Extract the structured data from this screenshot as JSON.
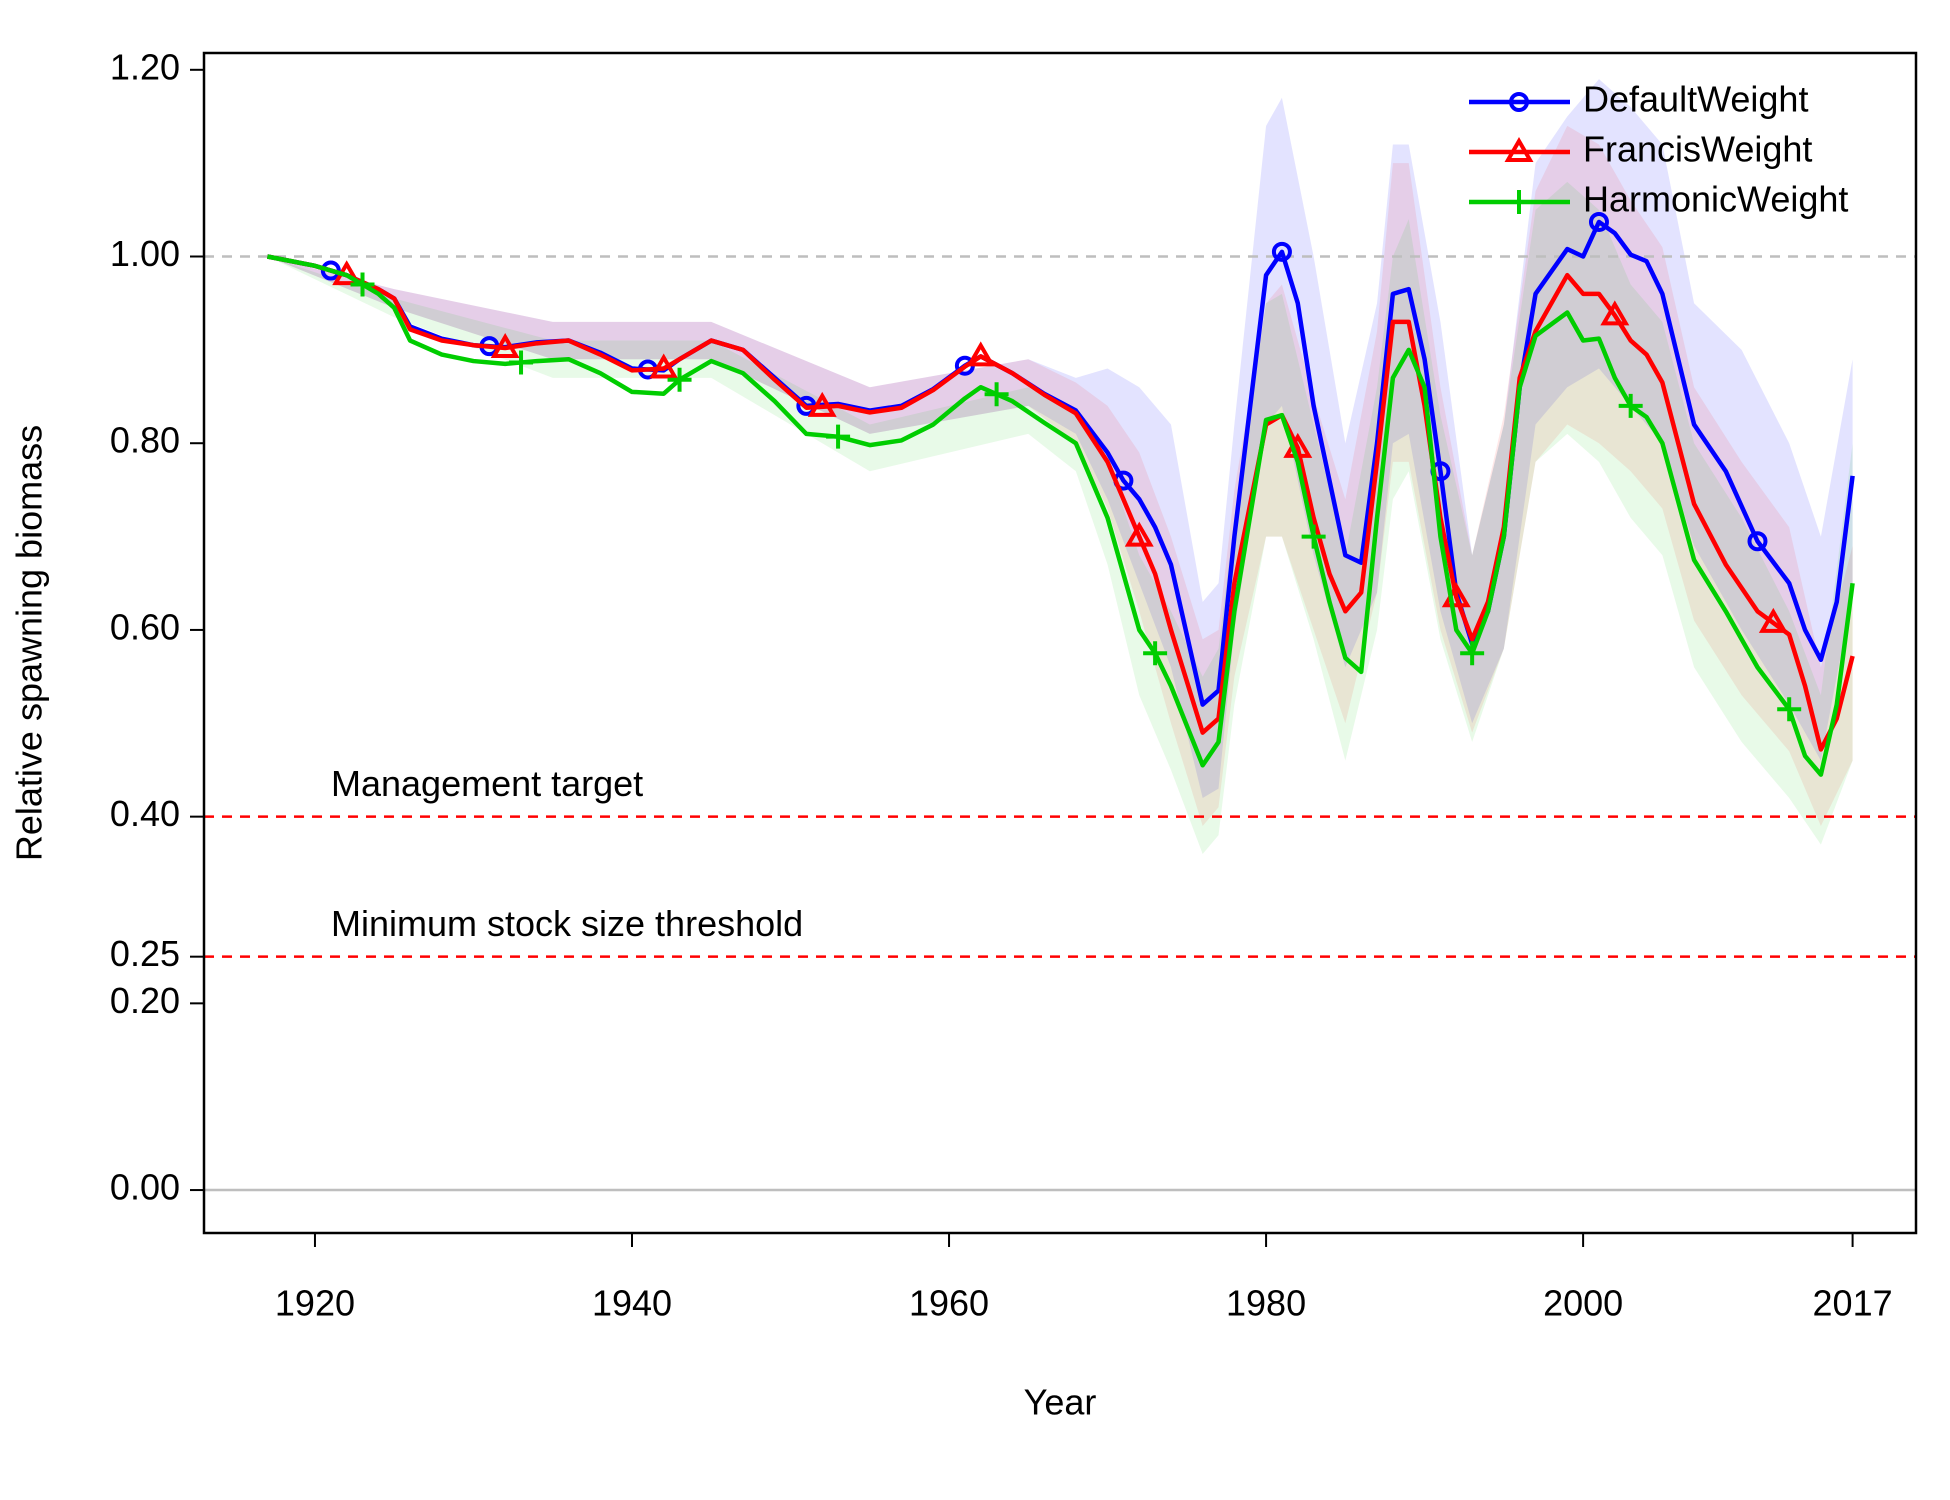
{
  "chart_data": {
    "type": "line",
    "xlabel": "Year",
    "ylabel": "Relative spawning biomass",
    "xlim": [
      1913,
      2021
    ],
    "ylim": [
      -0.046,
      1.218
    ],
    "xticks": [
      1920,
      1940,
      1960,
      1980,
      2000,
      2017
    ],
    "yticks": [
      {
        "value": 0,
        "label": "0.00"
      },
      {
        "value": 0.2,
        "label": "0.20"
      },
      {
        "value": 0.25,
        "label": "0.25"
      },
      {
        "value": 0.4,
        "label": "0.40"
      },
      {
        "value": 0.6,
        "label": "0.60"
      },
      {
        "value": 0.8,
        "label": "0.80"
      },
      {
        "value": 1.0,
        "label": "1.00"
      },
      {
        "value": 1.2,
        "label": "1.20"
      }
    ],
    "legend": "top-right",
    "hlines": [
      {
        "value": 1.0,
        "color": "#bebebe",
        "style": "dashed"
      },
      {
        "value": 0.4,
        "color": "#ff0000",
        "style": "dashed",
        "label": "Management target"
      },
      {
        "value": 0.25,
        "color": "#ff0000",
        "style": "dashed",
        "label": "Minimum stock size threshold"
      },
      {
        "value": 0,
        "color": "#bebebe",
        "style": "solid"
      }
    ],
    "x": [
      1917,
      1920,
      1922,
      1924,
      1925,
      1926,
      1928,
      1930,
      1932,
      1934,
      1936,
      1938,
      1940,
      1942,
      1943,
      1945,
      1947,
      1949,
      1951,
      1953,
      1955,
      1957,
      1959,
      1961,
      1962,
      1964,
      1966,
      1968,
      1970,
      1971,
      1972,
      1973,
      1974,
      1976,
      1977,
      1978,
      1980,
      1981,
      1982,
      1983,
      1984,
      1985,
      1986,
      1987,
      1988,
      1989,
      1990,
      1991,
      1992,
      1993,
      1994,
      1995,
      1996,
      1997,
      1999,
      2000,
      2001,
      2002,
      2003,
      2004,
      2005,
      2007,
      2009,
      2011,
      2013,
      2014,
      2015,
      2016,
      2017
    ],
    "band_x": [
      1917,
      1925,
      1935,
      1945,
      1955,
      1965,
      1968,
      1970,
      1972,
      1974,
      1976,
      1977,
      1978,
      1980,
      1981,
      1983,
      1985,
      1987,
      1988,
      1989,
      1991,
      1993,
      1995,
      1997,
      1999,
      2001,
      2003,
      2005,
      2007,
      2010,
      2013,
      2015,
      2017
    ],
    "series": [
      {
        "name": "DefaultWeight",
        "color": "#0000ff",
        "band_color": "rgba(0,0,255,0.11)",
        "marker": "circle",
        "marker_years": [
          1921,
          1931,
          1941,
          1951,
          1961,
          1971,
          1981,
          1991,
          2001,
          2011
        ],
        "values": [
          1.0,
          0.99,
          0.98,
          0.965,
          0.955,
          0.925,
          0.912,
          0.905,
          0.903,
          0.908,
          0.91,
          0.897,
          0.88,
          0.878,
          0.89,
          0.91,
          0.9,
          0.87,
          0.84,
          0.842,
          0.835,
          0.84,
          0.858,
          0.883,
          0.893,
          0.875,
          0.853,
          0.835,
          0.79,
          0.76,
          0.74,
          0.71,
          0.67,
          0.52,
          0.535,
          0.7,
          0.98,
          1.005,
          0.95,
          0.84,
          0.76,
          0.68,
          0.672,
          0.8,
          0.96,
          0.965,
          0.89,
          0.77,
          0.64,
          0.585,
          0.62,
          0.7,
          0.86,
          0.96,
          1.008,
          1.0,
          1.037,
          1.025,
          1.002,
          0.995,
          0.96,
          0.82,
          0.77,
          0.695,
          0.65,
          0.6,
          0.568,
          0.63,
          0.765
        ],
        "lower": [
          1.0,
          0.945,
          0.89,
          0.89,
          0.81,
          0.84,
          0.81,
          0.74,
          0.65,
          0.56,
          0.42,
          0.43,
          0.6,
          0.82,
          0.84,
          0.68,
          0.56,
          0.64,
          0.8,
          0.81,
          0.62,
          0.5,
          0.58,
          0.82,
          0.86,
          0.88,
          0.84,
          0.8,
          0.69,
          0.6,
          0.52,
          0.46,
          0.64
        ],
        "upper": [
          1.0,
          0.965,
          0.93,
          0.93,
          0.86,
          0.89,
          0.87,
          0.88,
          0.86,
          0.82,
          0.63,
          0.65,
          0.82,
          1.14,
          1.17,
          1.0,
          0.8,
          0.95,
          1.12,
          1.12,
          0.93,
          0.68,
          0.82,
          1.1,
          1.15,
          1.19,
          1.16,
          1.12,
          0.95,
          0.9,
          0.8,
          0.7,
          0.89
        ]
      },
      {
        "name": "FrancisWeight",
        "color": "#ff0000",
        "band_color": "rgba(255,0,0,0.09)",
        "marker": "triangle",
        "marker_years": [
          1922,
          1932,
          1942,
          1952,
          1962,
          1972,
          1982,
          1992,
          2002,
          2012
        ],
        "values": [
          1.0,
          0.99,
          0.98,
          0.965,
          0.955,
          0.922,
          0.91,
          0.905,
          0.902,
          0.907,
          0.91,
          0.895,
          0.878,
          0.88,
          0.89,
          0.91,
          0.9,
          0.868,
          0.838,
          0.84,
          0.833,
          0.838,
          0.857,
          0.882,
          0.893,
          0.875,
          0.852,
          0.832,
          0.78,
          0.74,
          0.7,
          0.66,
          0.6,
          0.49,
          0.505,
          0.65,
          0.82,
          0.83,
          0.795,
          0.72,
          0.66,
          0.62,
          0.64,
          0.78,
          0.93,
          0.93,
          0.84,
          0.72,
          0.635,
          0.59,
          0.63,
          0.71,
          0.87,
          0.92,
          0.98,
          0.96,
          0.96,
          0.937,
          0.91,
          0.895,
          0.865,
          0.735,
          0.67,
          0.62,
          0.595,
          0.54,
          0.472,
          0.505,
          0.572
        ],
        "lower": [
          1.0,
          0.945,
          0.89,
          0.89,
          0.81,
          0.84,
          0.8,
          0.73,
          0.62,
          0.5,
          0.39,
          0.41,
          0.55,
          0.7,
          0.7,
          0.6,
          0.5,
          0.64,
          0.78,
          0.78,
          0.6,
          0.49,
          0.58,
          0.78,
          0.82,
          0.8,
          0.77,
          0.73,
          0.61,
          0.53,
          0.47,
          0.39,
          0.46
        ],
        "upper": [
          1.0,
          0.965,
          0.93,
          0.93,
          0.86,
          0.89,
          0.865,
          0.84,
          0.79,
          0.7,
          0.59,
          0.6,
          0.75,
          0.95,
          0.97,
          0.85,
          0.74,
          0.92,
          1.1,
          1.1,
          0.86,
          0.68,
          0.83,
          1.07,
          1.14,
          1.12,
          1.06,
          1.01,
          0.86,
          0.78,
          0.71,
          0.56,
          0.69
        ]
      },
      {
        "name": "HarmonicWeight",
        "color": "#00cd00",
        "band_color": "rgba(0,205,0,0.09)",
        "marker": "plus",
        "marker_years": [
          1923,
          1933,
          1943,
          1953,
          1963,
          1973,
          1983,
          1993,
          2003,
          2013
        ],
        "values": [
          1.0,
          0.99,
          0.98,
          0.96,
          0.945,
          0.91,
          0.895,
          0.888,
          0.885,
          0.888,
          0.89,
          0.875,
          0.855,
          0.853,
          0.868,
          0.888,
          0.875,
          0.845,
          0.81,
          0.807,
          0.798,
          0.803,
          0.82,
          0.848,
          0.86,
          0.845,
          0.822,
          0.8,
          0.72,
          0.66,
          0.6,
          0.575,
          0.54,
          0.455,
          0.48,
          0.62,
          0.825,
          0.83,
          0.78,
          0.7,
          0.63,
          0.57,
          0.555,
          0.72,
          0.87,
          0.9,
          0.86,
          0.7,
          0.6,
          0.575,
          0.62,
          0.7,
          0.86,
          0.915,
          0.94,
          0.91,
          0.912,
          0.87,
          0.84,
          0.828,
          0.8,
          0.675,
          0.62,
          0.56,
          0.515,
          0.465,
          0.445,
          0.52,
          0.65
        ],
        "lower": [
          1.0,
          0.935,
          0.87,
          0.87,
          0.77,
          0.81,
          0.77,
          0.67,
          0.53,
          0.45,
          0.36,
          0.38,
          0.52,
          0.7,
          0.7,
          0.59,
          0.46,
          0.6,
          0.74,
          0.77,
          0.59,
          0.48,
          0.58,
          0.78,
          0.81,
          0.78,
          0.72,
          0.68,
          0.56,
          0.48,
          0.42,
          0.37,
          0.46
        ],
        "upper": [
          1.0,
          0.955,
          0.91,
          0.91,
          0.82,
          0.86,
          0.83,
          0.78,
          0.68,
          0.62,
          0.55,
          0.58,
          0.72,
          0.95,
          0.96,
          0.82,
          0.68,
          0.86,
          1.0,
          1.04,
          0.83,
          0.68,
          0.82,
          1.05,
          1.08,
          1.05,
          0.97,
          0.93,
          0.8,
          0.72,
          0.62,
          0.53,
          0.8
        ]
      }
    ]
  }
}
